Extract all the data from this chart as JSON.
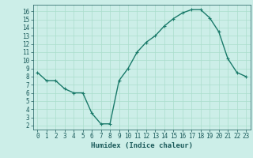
{
  "title": "",
  "xlabel": "Humidex (Indice chaleur)",
  "x": [
    0,
    1,
    2,
    3,
    4,
    5,
    6,
    7,
    8,
    9,
    10,
    11,
    12,
    13,
    14,
    15,
    16,
    17,
    18,
    19,
    20,
    21,
    22,
    23
  ],
  "y": [
    8.5,
    7.5,
    7.5,
    6.5,
    6.0,
    6.0,
    3.5,
    2.2,
    2.2,
    7.5,
    9.0,
    11.0,
    12.2,
    13.0,
    14.2,
    15.1,
    15.8,
    16.2,
    16.2,
    15.2,
    13.5,
    10.2,
    8.5,
    8.0
  ],
  "line_color": "#1a7a6a",
  "marker": "+",
  "bg_color": "#cceee8",
  "grid_color": "#aaddcc",
  "tick_color": "#1a5a5a",
  "label_color": "#1a5a5a",
  "xlim": [
    -0.5,
    23.5
  ],
  "ylim": [
    1.5,
    16.8
  ],
  "yticks": [
    2,
    3,
    4,
    5,
    6,
    7,
    8,
    9,
    10,
    11,
    12,
    13,
    14,
    15,
    16
  ],
  "xticks": [
    0,
    1,
    2,
    3,
    4,
    5,
    6,
    7,
    8,
    9,
    10,
    11,
    12,
    13,
    14,
    15,
    16,
    17,
    18,
    19,
    20,
    21,
    22,
    23
  ],
  "linewidth": 1.0,
  "markersize": 3.5,
  "tick_fontsize": 5.5,
  "xlabel_fontsize": 6.5
}
